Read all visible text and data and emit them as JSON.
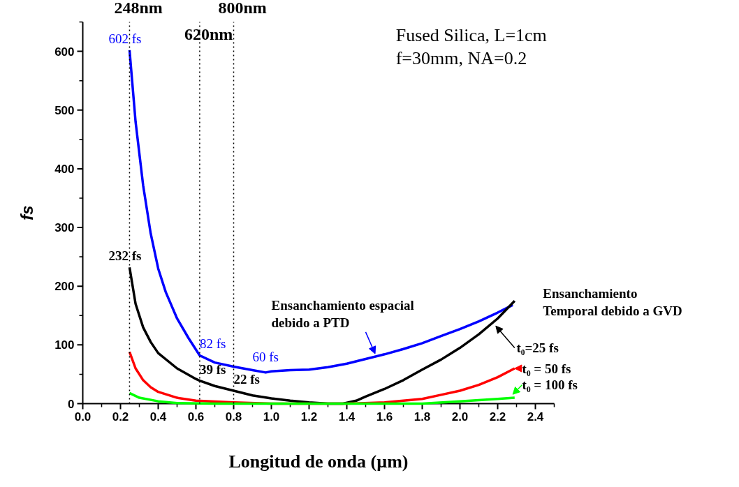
{
  "chart_data": {
    "type": "line",
    "xlabel": "Longitud de onda (µm)",
    "ylabel": "fs",
    "xlim": [
      0,
      2.5
    ],
    "ylim": [
      0,
      650
    ],
    "xticks": [
      {
        "value": 0,
        "label": "0.0"
      },
      0.2,
      0.4,
      0.6,
      0.8,
      {
        "value": 1,
        "label": "1.0"
      },
      1.2,
      1.4,
      1.6,
      1.8,
      {
        "value": 2,
        "label": "2.0"
      },
      2.2,
      2.4
    ],
    "yticks": [
      0,
      100,
      200,
      300,
      400,
      500,
      600
    ],
    "grid": false,
    "legend": "right",
    "line_style": "solid",
    "marker": "none",
    "series": [
      {
        "name": "Ensanchamiento espacial debido a PTD",
        "color": "#0000ff",
        "x": [
          0.248,
          0.28,
          0.32,
          0.36,
          0.4,
          0.44,
          0.5,
          0.56,
          0.62,
          0.7,
          0.8,
          0.9,
          0.97,
          1.0,
          1.1,
          1.2,
          1.3,
          1.4,
          1.5,
          1.6,
          1.7,
          1.8,
          1.9,
          2.0,
          2.1,
          2.2,
          2.28
        ],
        "values": [
          602,
          480,
          372,
          290,
          230,
          190,
          145,
          112,
          82,
          70,
          63,
          57,
          53,
          55,
          57,
          58,
          62,
          68,
          76,
          84,
          93,
          103,
          115,
          127,
          140,
          155,
          168
        ]
      },
      {
        "name": "t₀=25 fs",
        "color": "#000000",
        "x": [
          0.248,
          0.28,
          0.32,
          0.36,
          0.4,
          0.5,
          0.6,
          0.62,
          0.7,
          0.8,
          0.9,
          1.0,
          1.1,
          1.2,
          1.3,
          1.38,
          1.45,
          1.5,
          1.6,
          1.7,
          1.8,
          1.9,
          2.0,
          2.1,
          2.2,
          2.29
        ],
        "values": [
          232,
          170,
          130,
          105,
          86,
          60,
          42,
          39,
          30,
          22,
          14,
          9,
          5,
          2,
          0,
          0,
          5,
          12,
          25,
          40,
          58,
          75,
          95,
          118,
          145,
          175
        ]
      },
      {
        "name": "t₀ = 50 fs",
        "color": "#ff0000",
        "x": [
          0.248,
          0.28,
          0.32,
          0.36,
          0.4,
          0.5,
          0.6,
          0.8,
          1.0,
          1.4,
          1.6,
          1.8,
          1.9,
          2.0,
          2.1,
          2.2,
          2.29
        ],
        "values": [
          88,
          60,
          40,
          28,
          20,
          10,
          5,
          2,
          0,
          0,
          2,
          8,
          15,
          22,
          32,
          45,
          60
        ]
      },
      {
        "name": "t₀ = 100 fs",
        "color": "#00ff00",
        "x": [
          0.248,
          0.3,
          0.4,
          0.5,
          0.7,
          1.8,
          2.0,
          2.2,
          2.29
        ],
        "values": [
          18,
          10,
          4,
          1,
          0,
          0,
          4,
          8,
          10
        ]
      }
    ],
    "ref_lines": [
      {
        "axis": "x",
        "value": 0.248,
        "label": "248nm"
      },
      {
        "axis": "x",
        "value": 0.62,
        "label": "620nm"
      },
      {
        "axis": "x",
        "value": 0.8,
        "label": "800nm"
      }
    ],
    "annotations": [
      "Fused Silica, L=1cm",
      "f=30mm, NA=0.2",
      "Ensanchamiento Temporal debido a GVD",
      {
        "text": "602 fs",
        "x": 0.248,
        "y": 602
      },
      {
        "text": "82 fs",
        "x": 0.62,
        "y": 82
      },
      {
        "text": "60 fs",
        "x": 0.9,
        "y": 60
      },
      {
        "text": "232 fs",
        "x": 0.248,
        "y": 232
      },
      {
        "text": "39 fs",
        "x": 0.62,
        "y": 39
      },
      {
        "text": "22 fs",
        "x": 0.8,
        "y": 22
      }
    ]
  }
}
